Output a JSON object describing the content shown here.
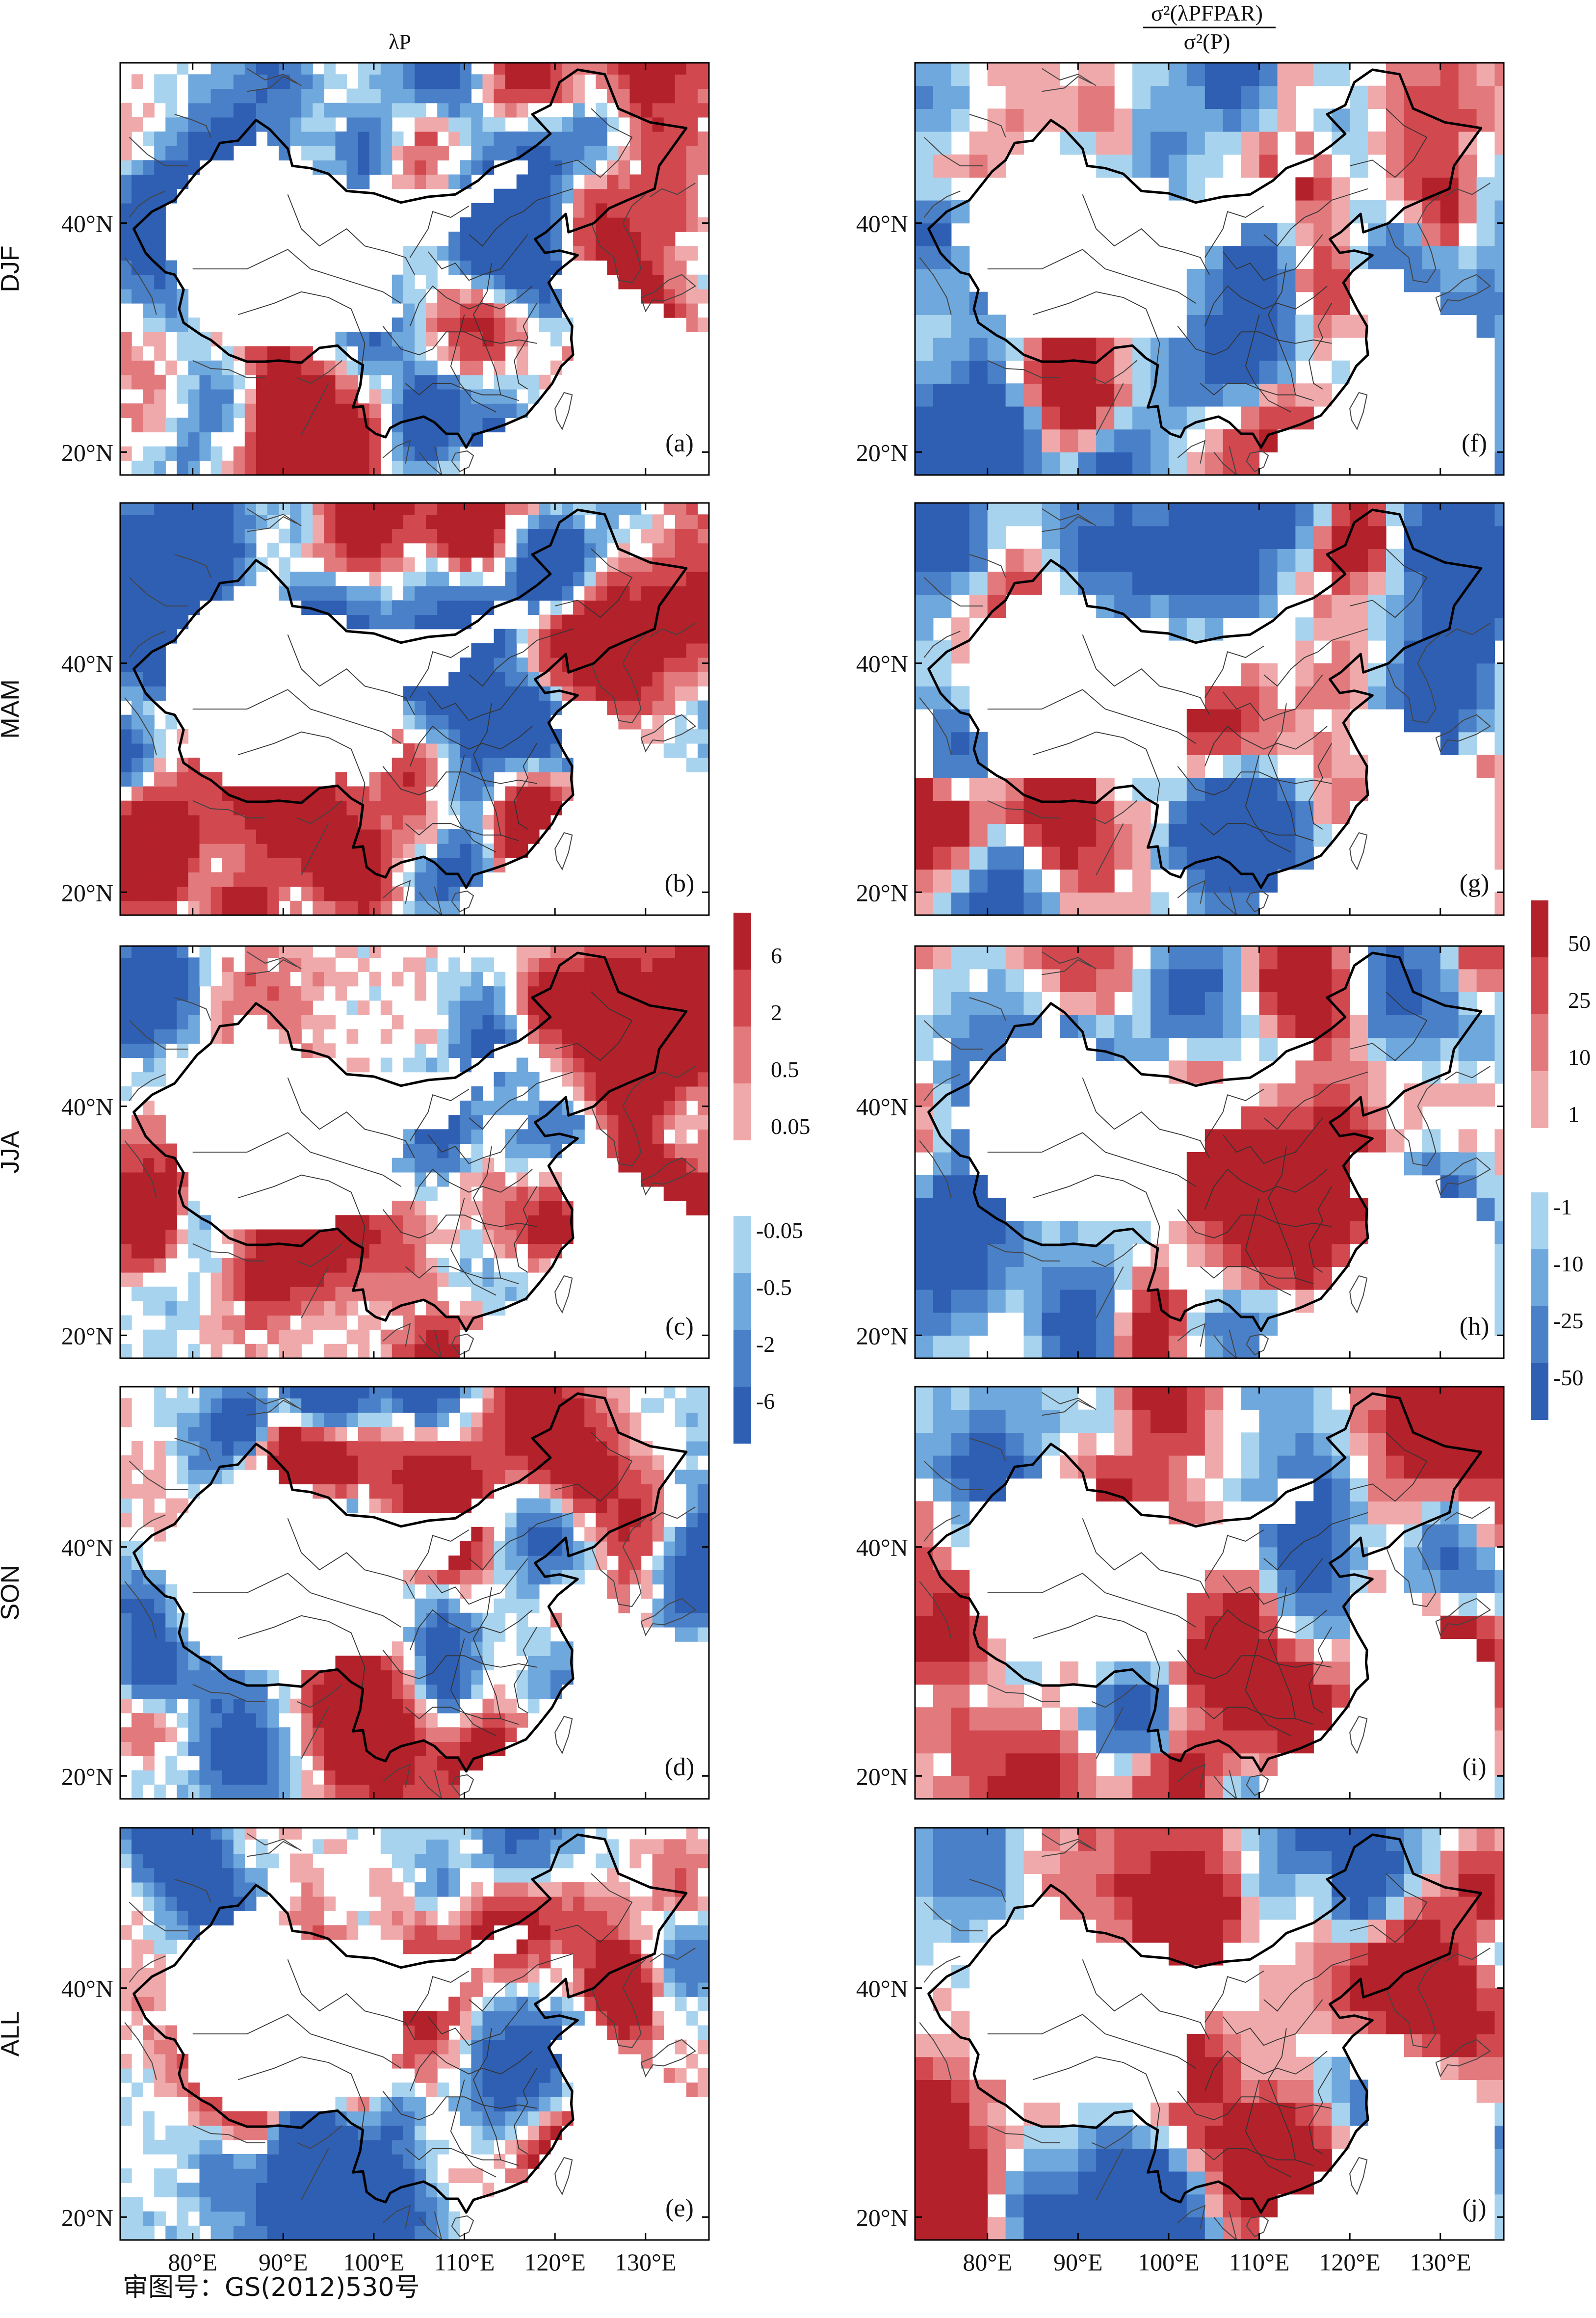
{
  "figure": {
    "left_column_title": "λP",
    "right_column_title": {
      "numerator": "σ²(λPFPAR)",
      "denominator": "σ²(P)"
    },
    "rows": [
      {
        "season": "DJF",
        "left_label": "(a)",
        "right_label": "(f)"
      },
      {
        "season": "MAM",
        "left_label": "(b)",
        "right_label": "(g)"
      },
      {
        "season": "JJA",
        "left_label": "(c)",
        "right_label": "(h)"
      },
      {
        "season": "SON",
        "left_label": "(d)",
        "right_label": "(i)"
      },
      {
        "season": "ALL",
        "left_label": "(e)",
        "right_label": "(j)"
      }
    ],
    "lat_ticks": [
      "40°N",
      "20°N"
    ],
    "lon_ticks": [
      "80°E",
      "90°E",
      "100°E",
      "110°E",
      "120°E",
      "130°E"
    ],
    "approval_number": "审图号：GS(2012)530号"
  },
  "left_colorbar": {
    "positive_labels": [
      "6",
      "2",
      "0.5",
      "0.05"
    ],
    "negative_labels": [
      "-0.05",
      "-0.5",
      "-2",
      "-6"
    ],
    "positive_colors": [
      "#b3212a",
      "#d1484f",
      "#e2797d",
      "#f0a9aa"
    ],
    "negative_colors": [
      "#a8d3ee",
      "#6fa8dc",
      "#4a80c7",
      "#2f5fb3"
    ]
  },
  "right_colorbar": {
    "positive_labels": [
      "50",
      "25",
      "10",
      "1"
    ],
    "negative_labels": [
      "-1",
      "-10",
      "-25",
      "-50"
    ],
    "positive_colors": [
      "#b3212a",
      "#d1484f",
      "#e2797d",
      "#f0a9aa"
    ],
    "negative_colors": [
      "#a8d3ee",
      "#6fa8dc",
      "#4a80c7",
      "#2f5fb3"
    ]
  },
  "colors": {
    "red_dark": "#b3212a",
    "red_mid": "#d1484f",
    "red_light": "#e2797d",
    "red_pale": "#f0a9aa",
    "blue_pale": "#a8d3ee",
    "blue_light": "#6fa8dc",
    "blue_mid": "#4a80c7",
    "blue_dark": "#2f5fb3"
  }
}
